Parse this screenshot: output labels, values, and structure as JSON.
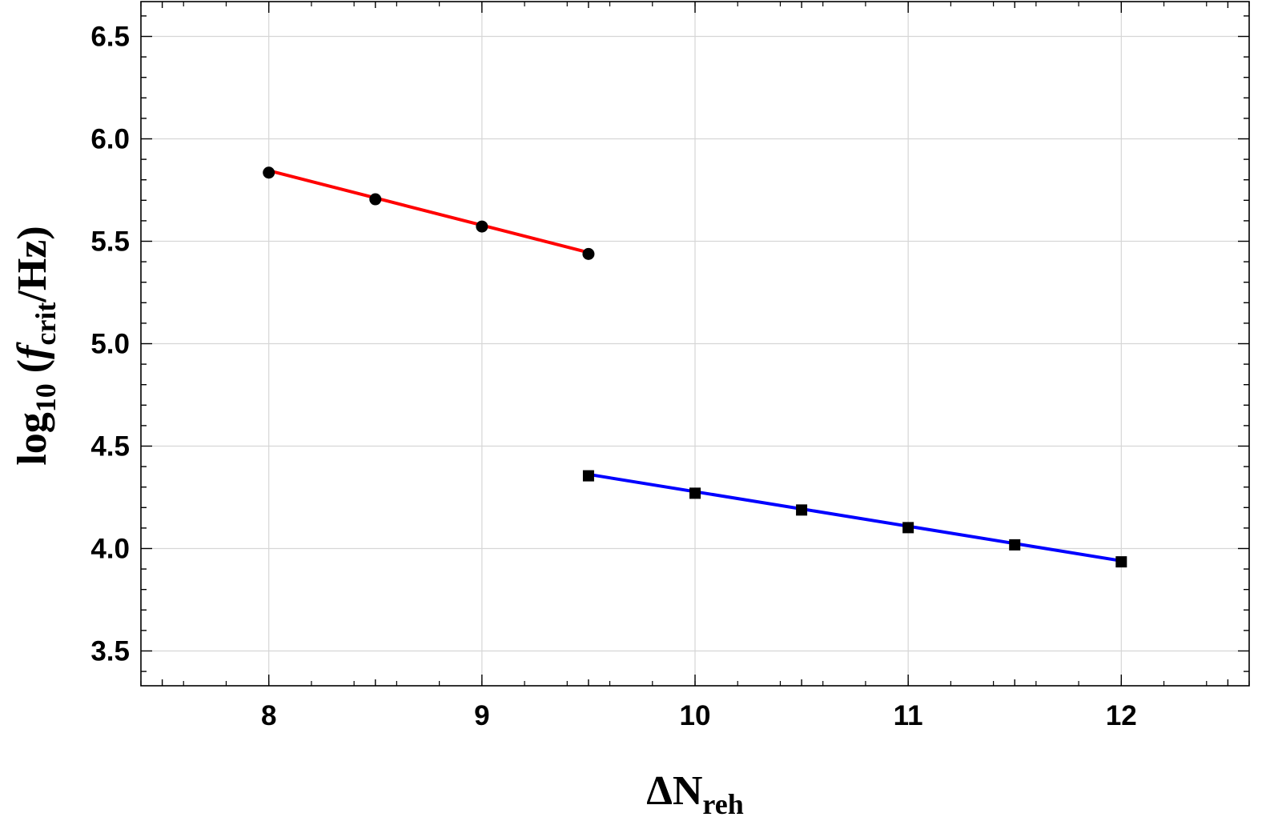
{
  "chart_data": {
    "type": "scatter",
    "title": "",
    "xlabel": {
      "main": "ΔN",
      "sub": "reh"
    },
    "ylabel": {
      "prefix": "log",
      "prefix_sub": "10",
      "open": " (",
      "var": "f",
      "var_sub": "crit",
      "unit": "/Hz)"
    },
    "xlim": [
      7.4,
      12.6
    ],
    "ylim": [
      3.33,
      6.67
    ],
    "xticks": [
      8,
      9,
      10,
      11,
      12
    ],
    "xtick_labels": [
      "8",
      "9",
      "10",
      "11",
      "12"
    ],
    "yticks": [
      3.5,
      4.0,
      4.5,
      5.0,
      5.5,
      6.0,
      6.5
    ],
    "ytick_labels": [
      "3.5",
      "4.0",
      "4.5",
      "5.0",
      "5.5",
      "6.0",
      "6.5"
    ],
    "grid": true,
    "series": [
      {
        "marker": "circle",
        "line_color": "#ff0000",
        "marker_color": "#000000",
        "x": [
          8.0,
          8.5,
          9.0,
          9.5
        ],
        "y": [
          5.835,
          5.705,
          5.572,
          5.438
        ],
        "fit": {
          "x": [
            8.0,
            9.5
          ],
          "y": [
            5.845,
            5.445
          ]
        }
      },
      {
        "marker": "square",
        "line_color": "#0000ff",
        "marker_color": "#000000",
        "x": [
          9.5,
          10.0,
          10.5,
          11.0,
          11.5,
          12.0
        ],
        "y": [
          4.355,
          4.27,
          4.188,
          4.102,
          4.018,
          3.935
        ],
        "fit": {
          "x": [
            9.5,
            12.0
          ],
          "y": [
            4.362,
            3.94
          ]
        }
      }
    ]
  }
}
